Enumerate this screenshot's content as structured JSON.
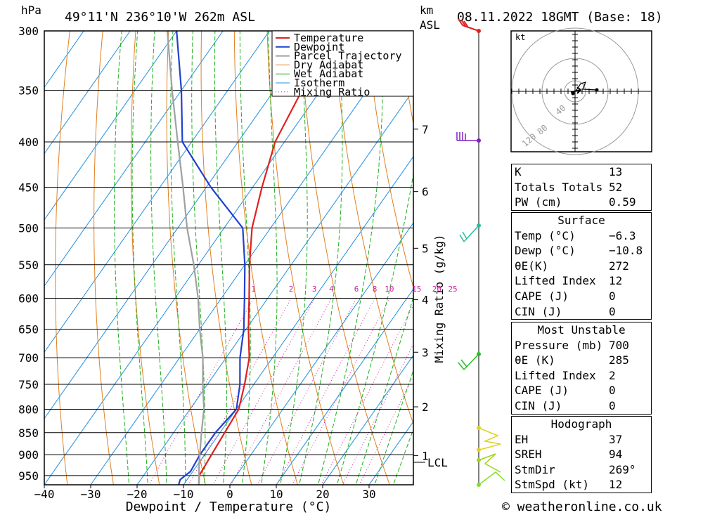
{
  "header": {
    "unit_hpa": "hPa",
    "location": "49°11'N  236°10'W  262m  ASL",
    "unit_km": "km",
    "unit_asl": "ASL",
    "datetime": "08.11.2022  18GMT  (Base: 18)"
  },
  "chart_data": {
    "type": "line",
    "title": "49°11'N  236°10'W  262m  ASL",
    "xlabel": "Dewpoint / Temperature (°C)",
    "ylabel": "hPa",
    "x_ticks": [
      -40,
      -30,
      -20,
      -10,
      0,
      10,
      20,
      30
    ],
    "x_tick_labels": [
      "−40",
      "−30",
      "−20",
      "−10",
      "0",
      "10",
      "20",
      "30"
    ],
    "p_levels": [
      300,
      350,
      400,
      450,
      500,
      550,
      600,
      650,
      700,
      750,
      800,
      850,
      900,
      950
    ],
    "p_labels": [
      "300",
      "350",
      "400",
      "450",
      "500",
      "550",
      "600",
      "650",
      "700",
      "750",
      "800",
      "850",
      "900",
      "950"
    ],
    "km_ticks": [
      {
        "km": 1,
        "label": "1",
        "p": 902
      },
      {
        "km": 2,
        "label": "2",
        "p": 795
      },
      {
        "km": 3,
        "label": "3",
        "p": 690
      },
      {
        "km": 4,
        "label": "4",
        "p": 602
      },
      {
        "km": 5,
        "label": "5",
        "p": 527
      },
      {
        "km": 6,
        "label": "6",
        "p": 455
      },
      {
        "km": 7,
        "label": "7",
        "p": 387
      }
    ],
    "lcl": {
      "label": "LCL",
      "p": 918
    },
    "mixing_ratio_axis_label": "Mixing Ratio (g/kg)",
    "mixing_ratio_values": [
      1,
      2,
      3,
      4,
      6,
      8,
      10,
      15,
      20,
      25
    ],
    "mixing_ratio_labels": [
      "1",
      "2",
      "3",
      "4",
      "6",
      "8",
      "10",
      "15",
      "20",
      "25"
    ],
    "legend": [
      "Temperature",
      "Dewpoint",
      "Parcel Trajectory",
      "Dry Adiabat",
      "Wet Adiabat",
      "Isotherm",
      "Mixing Ratio"
    ],
    "series": [
      {
        "name": "Temperature",
        "color": "#e02020",
        "points": [
          [
            980,
            -6.3
          ],
          [
            950,
            -8
          ],
          [
            900,
            -8.5
          ],
          [
            850,
            -9
          ],
          [
            800,
            -9.5
          ],
          [
            750,
            -12
          ],
          [
            700,
            -15
          ],
          [
            650,
            -19.5
          ],
          [
            600,
            -24
          ],
          [
            550,
            -29
          ],
          [
            500,
            -34
          ],
          [
            450,
            -38
          ],
          [
            400,
            -42
          ],
          [
            350,
            -44
          ],
          [
            300,
            -48
          ]
        ]
      },
      {
        "name": "Dewpoint",
        "color": "#2040d0",
        "points": [
          [
            980,
            -10.8
          ],
          [
            960,
            -11.5
          ],
          [
            940,
            -10.5
          ],
          [
            900,
            -11
          ],
          [
            850,
            -11
          ],
          [
            800,
            -10
          ],
          [
            750,
            -13
          ],
          [
            700,
            -17
          ],
          [
            650,
            -20.5
          ],
          [
            600,
            -25
          ],
          [
            550,
            -30
          ],
          [
            500,
            -36
          ],
          [
            450,
            -49
          ],
          [
            400,
            -62
          ],
          [
            350,
            -70
          ],
          [
            300,
            -80
          ]
        ]
      },
      {
        "name": "Parcel Trajectory",
        "color": "#a0a0a0",
        "points": [
          [
            980,
            -6.3
          ],
          [
            918,
            -10
          ],
          [
            850,
            -14
          ],
          [
            800,
            -17
          ],
          [
            750,
            -21
          ],
          [
            700,
            -25
          ],
          [
            650,
            -30
          ],
          [
            600,
            -35
          ],
          [
            550,
            -41
          ],
          [
            500,
            -48
          ],
          [
            450,
            -55
          ],
          [
            400,
            -63
          ],
          [
            350,
            -72
          ],
          [
            300,
            -82
          ]
        ]
      }
    ],
    "xlim": [
      -40,
      40
    ],
    "ylim": [
      980,
      300
    ]
  },
  "hodograph": {
    "unit": "kt",
    "ring_labels": [
      "40",
      "80",
      "120"
    ]
  },
  "indices": {
    "k_label": "K",
    "k": "13",
    "tt_label": "Totals Totals",
    "tt": "52",
    "pw_label": "PW (cm)",
    "pw": "0.59"
  },
  "surface": {
    "title": "Surface",
    "temp_label": "Temp (°C)",
    "temp": "−6.3",
    "dewp_label": "Dewp (°C)",
    "dewp": "−10.8",
    "theta_label": "θE(K)",
    "theta": "272",
    "li_label": "Lifted Index",
    "li": "12",
    "cape_label": "CAPE (J)",
    "cape": "0",
    "cin_label": "CIN (J)",
    "cin": "0"
  },
  "most_unstable": {
    "title": "Most Unstable",
    "pres_label": "Pressure (mb)",
    "pres": "700",
    "theta_label": "θE (K)",
    "theta": "285",
    "li_label": "Lifted Index",
    "li": "2",
    "cape_label": "CAPE (J)",
    "cape": "0",
    "cin_label": "CIN (J)",
    "cin": "0"
  },
  "hodograph_table": {
    "title": "Hodograph",
    "eh_label": "EH",
    "eh": "37",
    "sreh_label": "SREH",
    "sreh": "94",
    "stmdir_label": "StmDir",
    "stmdir": "269°",
    "stmspd_label": "StmSpd (kt)",
    "stmspd": "12"
  },
  "footer": {
    "credit": "© weatheronline.co.uk"
  },
  "colors": {
    "temp": "#e02020",
    "dew": "#2040d0",
    "parcel": "#a0a0a0",
    "dry": "#e08020",
    "wet": "#20b020",
    "iso": "#2090e0",
    "mix": "#d020a0"
  }
}
